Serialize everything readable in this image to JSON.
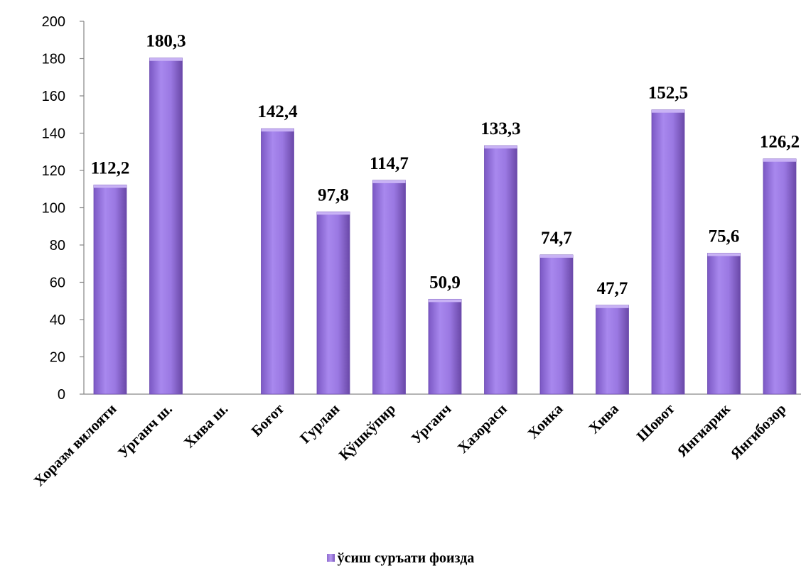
{
  "chart_data": {
    "type": "bar",
    "categories": [
      "Хоразм вилояти",
      "Урганч ш.",
      "Хива ш.",
      "Боғот",
      "Гурлан",
      "Қўшкўпир",
      "Урганч",
      "Хазорасп",
      "Хонка",
      "Хива",
      "Шовот",
      "Янгиарик",
      "Янгибозор"
    ],
    "series": [
      {
        "name": "ўсиш суръати фоизда",
        "values": [
          112.2,
          180.3,
          null,
          142.4,
          97.8,
          114.7,
          50.9,
          133.3,
          74.7,
          47.7,
          152.5,
          75.6,
          126.2
        ],
        "labels": [
          "112,2",
          "180,3",
          "",
          "142,4",
          "97,8",
          "114,7",
          "50,9",
          "133,3",
          "74,7",
          "47,7",
          "152,5",
          "75,6",
          "126,2"
        ]
      }
    ],
    "ylim": [
      0,
      200
    ],
    "yticks": [
      "0",
      "20",
      "40",
      "60",
      "80",
      "100",
      "120",
      "140",
      "160",
      "180",
      "200"
    ],
    "grid": false,
    "legend_position": "bottom",
    "colors": {
      "bar": "#9370db",
      "bar_light": "#b89af0",
      "bar_dark": "#6a48a8"
    }
  }
}
